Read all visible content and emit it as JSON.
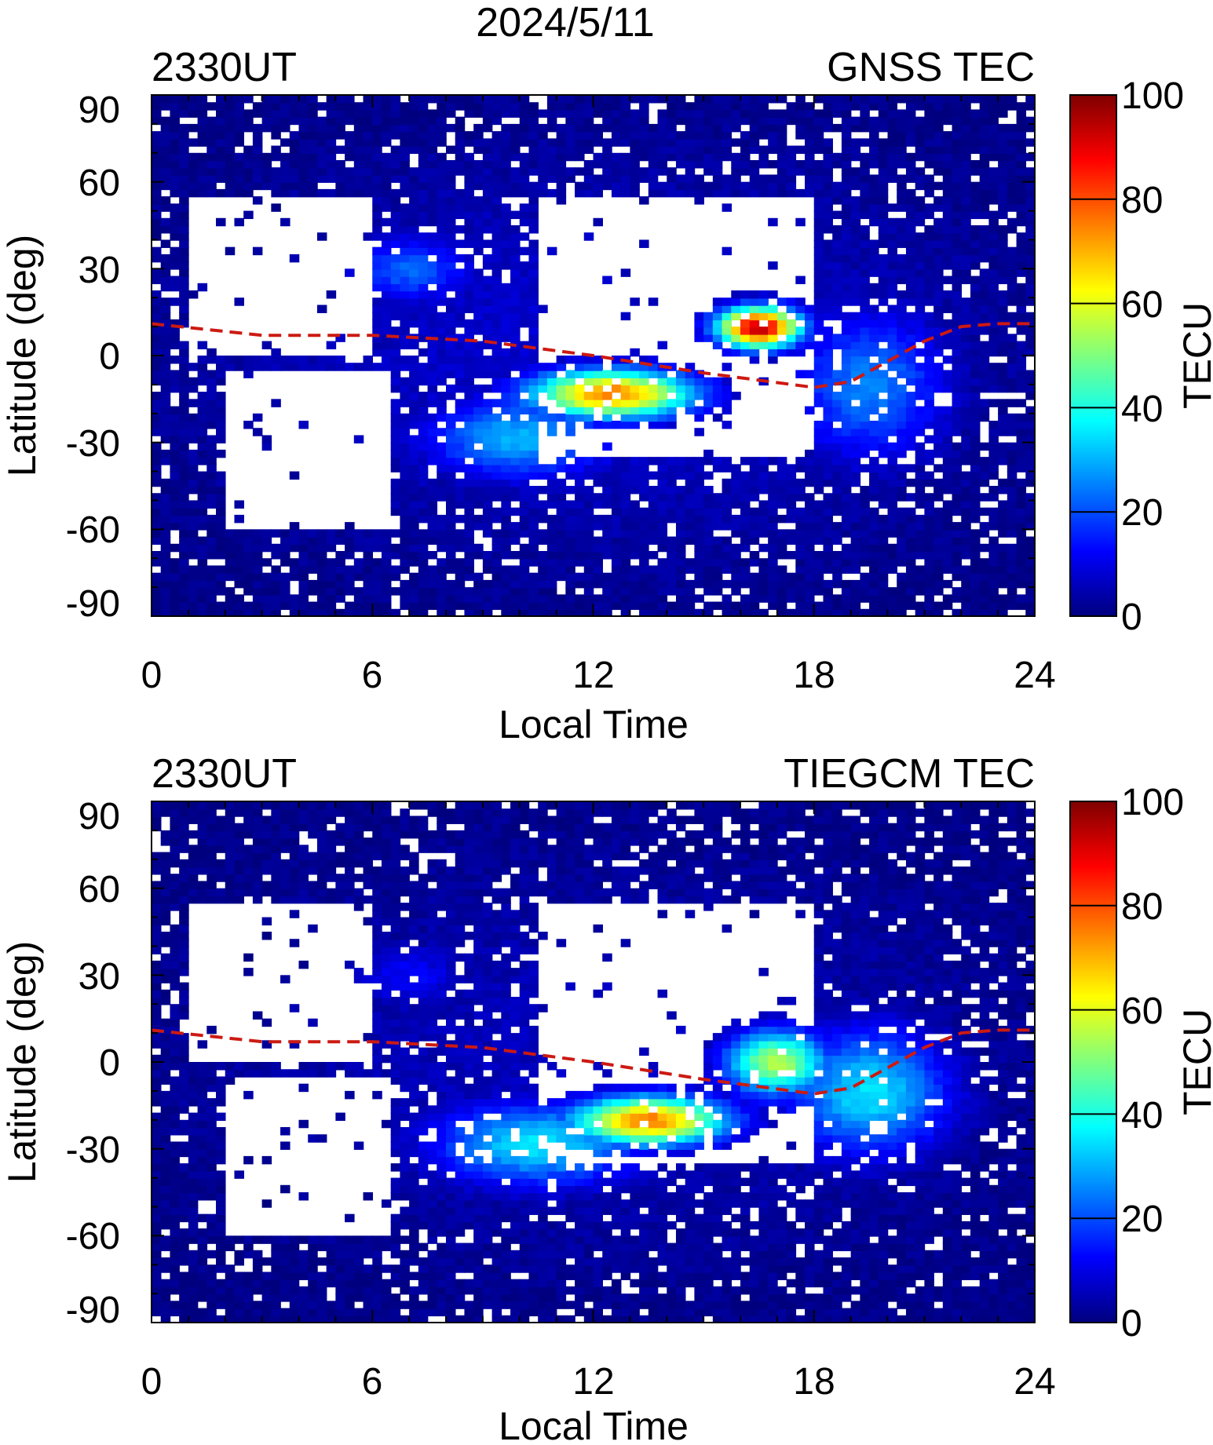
{
  "figure_title": "2024/5/11",
  "chart_data": [
    {
      "type": "heatmap",
      "panel": "top",
      "title_left": "2330UT",
      "title_right": "GNSS TEC",
      "xlabel": "Local Time",
      "ylabel": "Latitude (deg)",
      "xlim": [
        0,
        24
      ],
      "ylim": [
        -90,
        90
      ],
      "x_ticks": [
        "0",
        "6",
        "12",
        "18",
        "24"
      ],
      "y_ticks": [
        "90",
        "60",
        "30",
        "0",
        "-30",
        "-60",
        "-90"
      ],
      "colorbar": {
        "label": "TECU",
        "range": [
          0,
          100
        ],
        "ticks": [
          "100",
          "80",
          "60",
          "40",
          "20",
          "0"
        ]
      },
      "magnetic_equator": {
        "lt": [
          0,
          3,
          6,
          9,
          12,
          15,
          18,
          19,
          20,
          21,
          22,
          23,
          24
        ],
        "lat": [
          11,
          7,
          7,
          5,
          0,
          -6,
          -11,
          -9,
          -2,
          5,
          10,
          11,
          11
        ]
      },
      "features": [
        {
          "name": "global_background",
          "lt": 12,
          "lat": 0,
          "lt_sd": 8,
          "lat_sd": 50,
          "tec": 8
        },
        {
          "name": "south_pacific_crest",
          "lt": 12.5,
          "lat": -13,
          "lt_sd": 1.6,
          "lat_sd": 6,
          "tec": 75
        },
        {
          "name": "east_pacific_peak",
          "lt": 16.5,
          "lat": 10,
          "lt_sd": 0.8,
          "lat_sd": 5,
          "tec": 95
        },
        {
          "name": "south_america",
          "lt": 19.5,
          "lat": -10,
          "lt_sd": 1.5,
          "lat_sd": 18,
          "tec": 25
        },
        {
          "name": "australia",
          "lt": 10,
          "lat": -28,
          "lt_sd": 1.8,
          "lat_sd": 10,
          "tec": 30
        },
        {
          "name": "east_asia",
          "lt": 7,
          "lat": 30,
          "lt_sd": 1.2,
          "lat_sd": 8,
          "tec": 22
        }
      ]
    },
    {
      "type": "heatmap",
      "panel": "bottom",
      "title_left": "2330UT",
      "title_right": "TIEGCM TEC",
      "xlabel": "Local Time",
      "ylabel": "Latitude (deg)",
      "xlim": [
        0,
        24
      ],
      "ylim": [
        -90,
        90
      ],
      "x_ticks": [
        "0",
        "6",
        "12",
        "18",
        "24"
      ],
      "y_ticks": [
        "90",
        "60",
        "30",
        "0",
        "-30",
        "-60",
        "-90"
      ],
      "colorbar": {
        "label": "TECU",
        "range": [
          0,
          100
        ],
        "ticks": [
          "100",
          "80",
          "60",
          "40",
          "20",
          "0"
        ]
      },
      "magnetic_equator": {
        "lt": [
          0,
          3,
          6,
          9,
          12,
          15,
          18,
          19,
          20,
          21,
          22,
          23,
          24
        ],
        "lat": [
          11,
          7,
          7,
          5,
          0,
          -6,
          -11,
          -9,
          -2,
          5,
          10,
          11,
          11
        ]
      },
      "features": [
        {
          "name": "global_background",
          "lt": 12,
          "lat": 0,
          "lt_sd": 8,
          "lat_sd": 50,
          "tec": 6
        },
        {
          "name": "south_pacific_crest",
          "lt": 13.5,
          "lat": -20,
          "lt_sd": 1.5,
          "lat_sd": 6,
          "tec": 75
        },
        {
          "name": "east_pacific_band",
          "lt": 17,
          "lat": 0,
          "lt_sd": 1.0,
          "lat_sd": 8,
          "tec": 55
        },
        {
          "name": "south_america",
          "lt": 19.5,
          "lat": -10,
          "lt_sd": 1.5,
          "lat_sd": 15,
          "tec": 35
        },
        {
          "name": "australia",
          "lt": 10.5,
          "lat": -28,
          "lt_sd": 2.0,
          "lat_sd": 10,
          "tec": 35
        },
        {
          "name": "east_asia",
          "lt": 7,
          "lat": 30,
          "lt_sd": 1.2,
          "lat_sd": 8,
          "tec": 12
        }
      ]
    }
  ]
}
